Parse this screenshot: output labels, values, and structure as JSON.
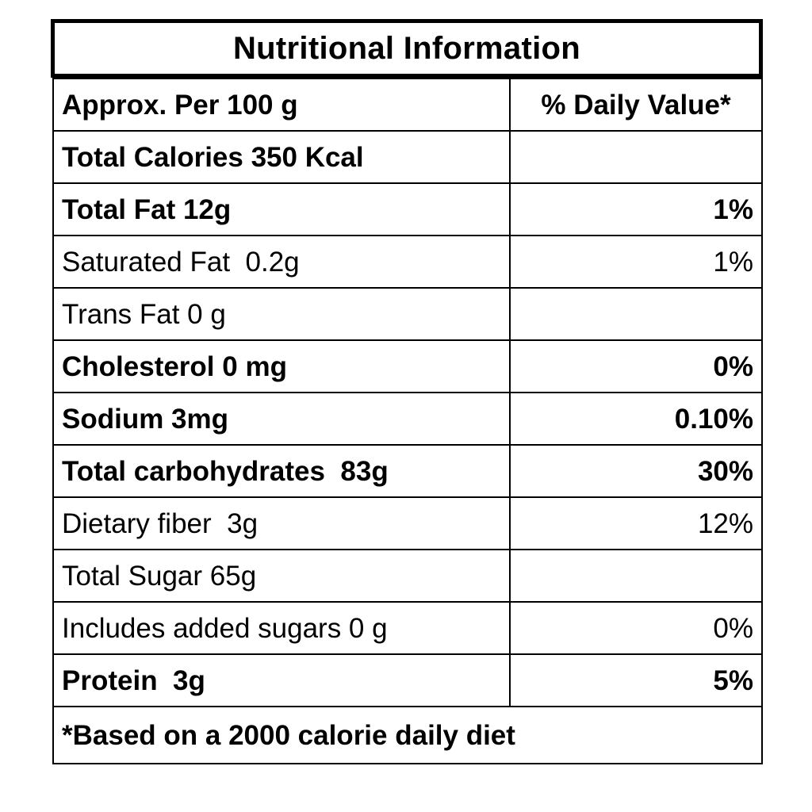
{
  "title": "Nutritional Information",
  "header": {
    "left": "Approx. Per 100 g",
    "right": "% Daily Value*"
  },
  "rows": [
    {
      "label": "Total Calories 350 Kcal",
      "value": "",
      "bold": true
    },
    {
      "label": "Total Fat 12g",
      "value": "1%",
      "bold": true
    },
    {
      "label": "Saturated Fat  0.2g",
      "value": "1%",
      "bold": false
    },
    {
      "label": "Trans Fat 0 g",
      "value": "",
      "bold": false
    },
    {
      "label": "Cholesterol 0 mg",
      "value": "0%",
      "bold": true
    },
    {
      "label": "Sodium 3mg",
      "value": "0.10%",
      "bold": true
    },
    {
      "label": "Total carbohydrates  83g",
      "value": "30%",
      "bold": true
    },
    {
      "label": "Dietary fiber  3g",
      "value": "12%",
      "bold": false
    },
    {
      "label": "Total Sugar 65g",
      "value": "",
      "bold": false
    },
    {
      "label": "Includes added sugars 0 g",
      "value": "0%",
      "bold": false
    },
    {
      "label": "Protein  3g",
      "value": "5%",
      "bold": true
    }
  ],
  "footnote": "*Based on a 2000 calorie daily diet"
}
